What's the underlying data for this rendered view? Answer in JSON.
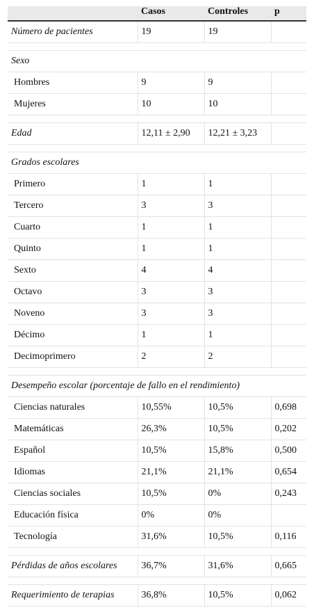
{
  "table": {
    "header": [
      null,
      "Casos",
      "Controles",
      "p"
    ],
    "sections": [
      {
        "rows": [
          [
            "Número de pacientes",
            "19",
            "19",
            null
          ]
        ]
      },
      {
        "heading": "Sexo",
        "rows": [
          [
            "Hombres",
            "9",
            "9",
            null
          ],
          [
            "Mujeres",
            "10",
            "10",
            null
          ]
        ]
      },
      {
        "rows": [
          [
            "Edad",
            "12,11 ± 2,90",
            "12,21 ± 3,23",
            null
          ]
        ]
      },
      {
        "heading": "Grados escolares",
        "rows": [
          [
            "Primero",
            "1",
            "1",
            null
          ],
          [
            "Tercero",
            "3",
            "3",
            null
          ],
          [
            "Cuarto",
            "1",
            "1",
            null
          ],
          [
            "Quinto",
            "1",
            "1",
            null
          ],
          [
            "Sexto",
            "4",
            "4",
            null
          ],
          [
            "Octavo",
            "3",
            "3",
            null
          ],
          [
            "Noveno",
            "3",
            "3",
            null
          ],
          [
            "Décimo",
            "1",
            "1",
            null
          ],
          [
            "Decimoprimero",
            "2",
            "2",
            null
          ]
        ]
      },
      {
        "heading": "Desempeño escolar (porcentaje de fallo en el rendimiento)",
        "rows": [
          [
            "Ciencias naturales",
            "10,55%",
            "10,5%",
            "0,698"
          ],
          [
            "Matemáticas",
            "26,3%",
            "10,5%",
            "0,202"
          ],
          [
            "Español",
            "10,5%",
            "15,8%",
            "0,500"
          ],
          [
            "Idiomas",
            "21,1%",
            "21,1%",
            "0,654"
          ],
          [
            "Ciencias sociales",
            "10,5%",
            "0%",
            "0,243"
          ],
          [
            "Educación física",
            "0%",
            "0%",
            null
          ],
          [
            "Tecnología",
            "31,6%",
            "10,5%",
            "0,116"
          ]
        ]
      },
      {
        "rows": [
          [
            "Pérdidas de años escolares",
            "36,7%",
            "31,6%",
            "0,665"
          ]
        ]
      },
      {
        "rows": [
          [
            "Requerimiento de terapias",
            "36,8%",
            "10,5%",
            "0,062"
          ]
        ]
      }
    ]
  }
}
